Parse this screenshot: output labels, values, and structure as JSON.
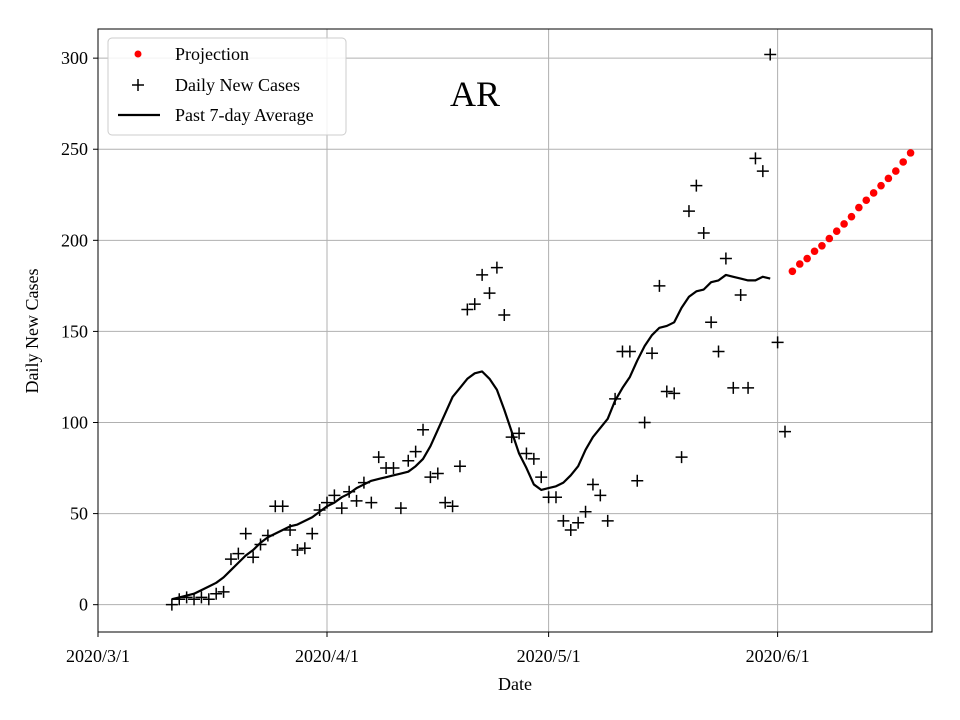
{
  "chart_data": {
    "type": "scatter",
    "title": "AR",
    "xlabel": "Date",
    "ylabel": "Daily New Cases",
    "x_start_date": "2020-03-01",
    "xlim": [
      0,
      112.9
    ],
    "ylim": [
      -15,
      316
    ],
    "xticks": [
      {
        "day": 0,
        "label": "2020/3/1"
      },
      {
        "day": 31,
        "label": "2020/4/1"
      },
      {
        "day": 61,
        "label": "2020/5/1"
      },
      {
        "day": 92,
        "label": "2020/6/1"
      }
    ],
    "yticks": [
      {
        "value": 0,
        "label": "0"
      },
      {
        "value": 50,
        "label": "50"
      },
      {
        "value": 100,
        "label": "100"
      },
      {
        "value": 150,
        "label": "150"
      },
      {
        "value": 200,
        "label": "200"
      },
      {
        "value": 250,
        "label": "250"
      },
      {
        "value": 300,
        "label": "300"
      }
    ],
    "grid": true,
    "legend_position": "top-left",
    "legend": [
      "Projection",
      "Daily New Cases",
      "Past 7-day Average"
    ],
    "series": [
      {
        "name": "Daily New Cases",
        "marker": "+",
        "color": "#000000",
        "start_day": 10,
        "values": [
          0,
          3,
          4,
          3,
          4,
          3,
          6,
          7,
          25,
          28,
          39,
          26,
          33,
          38,
          54,
          54,
          41,
          30,
          31,
          39,
          52,
          56,
          60,
          53,
          62,
          57,
          67,
          56,
          81,
          75,
          75,
          53,
          79,
          84,
          96,
          70,
          72,
          56,
          54,
          76,
          162,
          165,
          181,
          171,
          185,
          159,
          92,
          94,
          83,
          80,
          70,
          59,
          59,
          46,
          41,
          45,
          51,
          66,
          60,
          46,
          113,
          139,
          139,
          68,
          100,
          138,
          175,
          117,
          116,
          81,
          216,
          230,
          204,
          155,
          139,
          190,
          119,
          170,
          119,
          245,
          238,
          302,
          144,
          95
        ]
      },
      {
        "name": "Past 7-day Average",
        "style": "line",
        "color": "#000000",
        "start_day": 10,
        "values": [
          3,
          4,
          5,
          6,
          8,
          10,
          12,
          15,
          19,
          23,
          27,
          30,
          34,
          37,
          39,
          41,
          43,
          44,
          46,
          48,
          51,
          54,
          56,
          59,
          61,
          64,
          66,
          68,
          69,
          70,
          71,
          72,
          73,
          76,
          80,
          87,
          96,
          105,
          114,
          119,
          124,
          127,
          128,
          124,
          118,
          107,
          95,
          83,
          75,
          66,
          63,
          64,
          65,
          67,
          71,
          76,
          85,
          92,
          97,
          102,
          112,
          119,
          125,
          134,
          142,
          148,
          152,
          153,
          155,
          163,
          169,
          172,
          173,
          177,
          178,
          181,
          180,
          179,
          178,
          178,
          180,
          179
        ]
      },
      {
        "name": "Projection",
        "marker": "o",
        "color": "#ff0000",
        "start_day": 94,
        "values": [
          183,
          187,
          190,
          194,
          197,
          201,
          205,
          209,
          213,
          218,
          222,
          226,
          230,
          234,
          238,
          243,
          248
        ]
      }
    ]
  }
}
